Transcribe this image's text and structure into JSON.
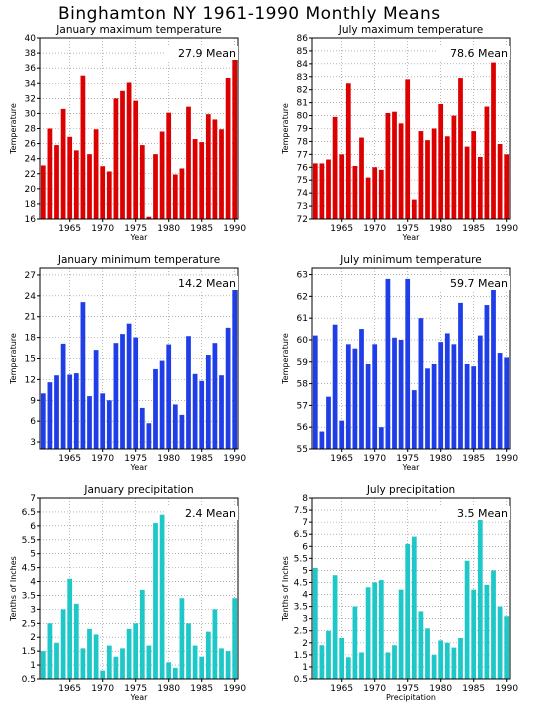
{
  "page_title": "Binghamton NY   1961-1990 Monthly Means",
  "chart_data": [
    {
      "type": "bar",
      "title": "January maximum temperature",
      "xlabel": "Year",
      "ylabel": "Temperature",
      "mean_label": "27.9 Mean",
      "color": "#dd0000",
      "x": [
        1961,
        1962,
        1963,
        1964,
        1965,
        1966,
        1967,
        1968,
        1969,
        1970,
        1971,
        1972,
        1973,
        1974,
        1975,
        1976,
        1977,
        1978,
        1979,
        1980,
        1981,
        1982,
        1983,
        1984,
        1985,
        1986,
        1987,
        1988,
        1989,
        1990
      ],
      "values": [
        23.1,
        28.0,
        25.8,
        30.6,
        26.9,
        25.1,
        35.0,
        24.6,
        27.9,
        23.0,
        22.3,
        32.0,
        33.0,
        34.1,
        31.7,
        25.8,
        16.3,
        24.6,
        27.6,
        30.1,
        21.9,
        22.7,
        30.9,
        26.6,
        26.2,
        29.9,
        29.2,
        27.9,
        34.7,
        37.8
      ],
      "ylim": [
        16,
        40
      ],
      "yticks": [
        16,
        18,
        20,
        22,
        24,
        26,
        28,
        30,
        32,
        34,
        36,
        38,
        40
      ],
      "xticks": [
        1965,
        1970,
        1975,
        1980,
        1985,
        1990
      ],
      "grid": true
    },
    {
      "type": "bar",
      "title": "July maximum temperature",
      "xlabel": "Year",
      "ylabel": "Temperature",
      "mean_label": "78.6 Mean",
      "color": "#dd0000",
      "x": [
        1961,
        1962,
        1963,
        1964,
        1965,
        1966,
        1967,
        1968,
        1969,
        1970,
        1971,
        1972,
        1973,
        1974,
        1975,
        1976,
        1977,
        1978,
        1979,
        1980,
        1981,
        1982,
        1983,
        1984,
        1985,
        1986,
        1987,
        1988,
        1989,
        1990
      ],
      "values": [
        76.3,
        76.3,
        76.6,
        79.9,
        77.0,
        82.5,
        76.1,
        78.3,
        75.2,
        76.0,
        75.8,
        80.2,
        80.3,
        79.4,
        82.8,
        73.5,
        78.8,
        78.1,
        79.0,
        80.9,
        78.4,
        80.0,
        82.9,
        77.6,
        78.8,
        76.8,
        80.7,
        84.1,
        77.8,
        77.0
      ],
      "ylim": [
        72,
        86
      ],
      "yticks": [
        72,
        73,
        74,
        75,
        76,
        77,
        78,
        79,
        80,
        81,
        82,
        83,
        84,
        85,
        86
      ],
      "xticks": [
        1965,
        1970,
        1975,
        1980,
        1985,
        1990
      ],
      "grid": true
    },
    {
      "type": "bar",
      "title": "January minimum temperature",
      "xlabel": "Year",
      "ylabel": "Temperature",
      "mean_label": "14.2 Mean",
      "color": "#1f3ee8",
      "x": [
        1961,
        1962,
        1963,
        1964,
        1965,
        1966,
        1967,
        1968,
        1969,
        1970,
        1971,
        1972,
        1973,
        1974,
        1975,
        1976,
        1977,
        1978,
        1979,
        1980,
        1981,
        1982,
        1983,
        1984,
        1985,
        1986,
        1987,
        1988,
        1989,
        1990
      ],
      "values": [
        10.0,
        11.6,
        12.6,
        17.1,
        12.7,
        12.9,
        23.1,
        9.6,
        16.2,
        10.0,
        9.0,
        17.2,
        18.5,
        20.0,
        18.0,
        7.9,
        5.7,
        13.5,
        14.7,
        17.0,
        8.4,
        6.9,
        18.2,
        12.8,
        11.8,
        15.5,
        17.2,
        12.6,
        19.4,
        25.3
      ],
      "ylim": [
        2,
        28
      ],
      "yticks": [
        3,
        6,
        9,
        12,
        15,
        18,
        21,
        24,
        27
      ],
      "xticks": [
        1965,
        1970,
        1975,
        1980,
        1985,
        1990
      ],
      "grid": true
    },
    {
      "type": "bar",
      "title": "July minimum temperature",
      "xlabel": "Year",
      "ylabel": "Temperature",
      "mean_label": "59.7 Mean",
      "color": "#1f3ee8",
      "x": [
        1961,
        1962,
        1963,
        1964,
        1965,
        1966,
        1967,
        1968,
        1969,
        1970,
        1971,
        1972,
        1973,
        1974,
        1975,
        1976,
        1977,
        1978,
        1979,
        1980,
        1981,
        1982,
        1983,
        1984,
        1985,
        1986,
        1987,
        1988,
        1989,
        1990
      ],
      "values": [
        60.2,
        55.8,
        57.4,
        60.7,
        56.3,
        59.8,
        59.6,
        60.5,
        58.9,
        59.8,
        56.0,
        62.8,
        60.1,
        60.0,
        62.8,
        57.7,
        61.0,
        58.7,
        58.9,
        59.9,
        60.3,
        59.8,
        61.7,
        58.9,
        58.8,
        60.2,
        61.6,
        62.8,
        59.4,
        59.2
      ],
      "ylim": [
        55,
        63.3
      ],
      "yticks": [
        55,
        56,
        57,
        58,
        59,
        60,
        61,
        62,
        63
      ],
      "xticks": [
        1965,
        1970,
        1975,
        1980,
        1985,
        1990
      ],
      "grid": true
    },
    {
      "type": "bar",
      "title": "January precipitation",
      "xlabel": "Year",
      "ylabel": "Tenths of Inches",
      "mean_label": "2.4 Mean",
      "color": "#1ec8c8",
      "x": [
        1961,
        1962,
        1963,
        1964,
        1965,
        1966,
        1967,
        1968,
        1969,
        1970,
        1971,
        1972,
        1973,
        1974,
        1975,
        1976,
        1977,
        1978,
        1979,
        1980,
        1981,
        1982,
        1983,
        1984,
        1985,
        1986,
        1987,
        1988,
        1989,
        1990
      ],
      "values": [
        1.5,
        2.5,
        1.8,
        3.0,
        4.1,
        3.2,
        1.6,
        2.3,
        2.1,
        0.8,
        1.7,
        1.3,
        1.6,
        2.3,
        2.5,
        3.7,
        1.7,
        6.1,
        6.4,
        1.1,
        0.9,
        3.4,
        2.5,
        1.7,
        1.3,
        2.2,
        3.0,
        1.6,
        1.5,
        3.4
      ],
      "ylim": [
        0.5,
        7
      ],
      "yticks": [
        0.5,
        1,
        1.5,
        2,
        2.5,
        3,
        3.5,
        4,
        4.5,
        5,
        5.5,
        6,
        6.5,
        7
      ],
      "xticks": [
        1965,
        1970,
        1975,
        1980,
        1985,
        1990
      ],
      "grid": true
    },
    {
      "type": "bar",
      "title": "July precipitation",
      "xlabel": "Precipitation",
      "ylabel": "Tenths of Inches",
      "mean_label": "3.5 Mean",
      "color": "#1ec8c8",
      "x": [
        1961,
        1962,
        1963,
        1964,
        1965,
        1966,
        1967,
        1968,
        1969,
        1970,
        1971,
        1972,
        1973,
        1974,
        1975,
        1976,
        1977,
        1978,
        1979,
        1980,
        1981,
        1982,
        1983,
        1984,
        1985,
        1986,
        1987,
        1988,
        1989,
        1990
      ],
      "values": [
        5.1,
        1.9,
        2.5,
        4.8,
        2.2,
        1.4,
        3.5,
        1.6,
        4.3,
        4.5,
        4.6,
        1.6,
        1.9,
        4.2,
        6.1,
        6.4,
        3.3,
        2.6,
        1.5,
        2.1,
        2.0,
        1.8,
        2.2,
        5.4,
        4.2,
        7.4,
        4.4,
        5.0,
        3.5,
        3.1
      ],
      "ylim": [
        0.5,
        8
      ],
      "yticks": [
        0.5,
        1,
        1.5,
        2,
        2.5,
        3,
        3.5,
        4,
        4.5,
        5,
        5.5,
        6,
        6.5,
        7,
        7.5,
        8
      ],
      "xticks": [
        1965,
        1970,
        1975,
        1980,
        1985,
        1990
      ],
      "grid": true
    }
  ]
}
